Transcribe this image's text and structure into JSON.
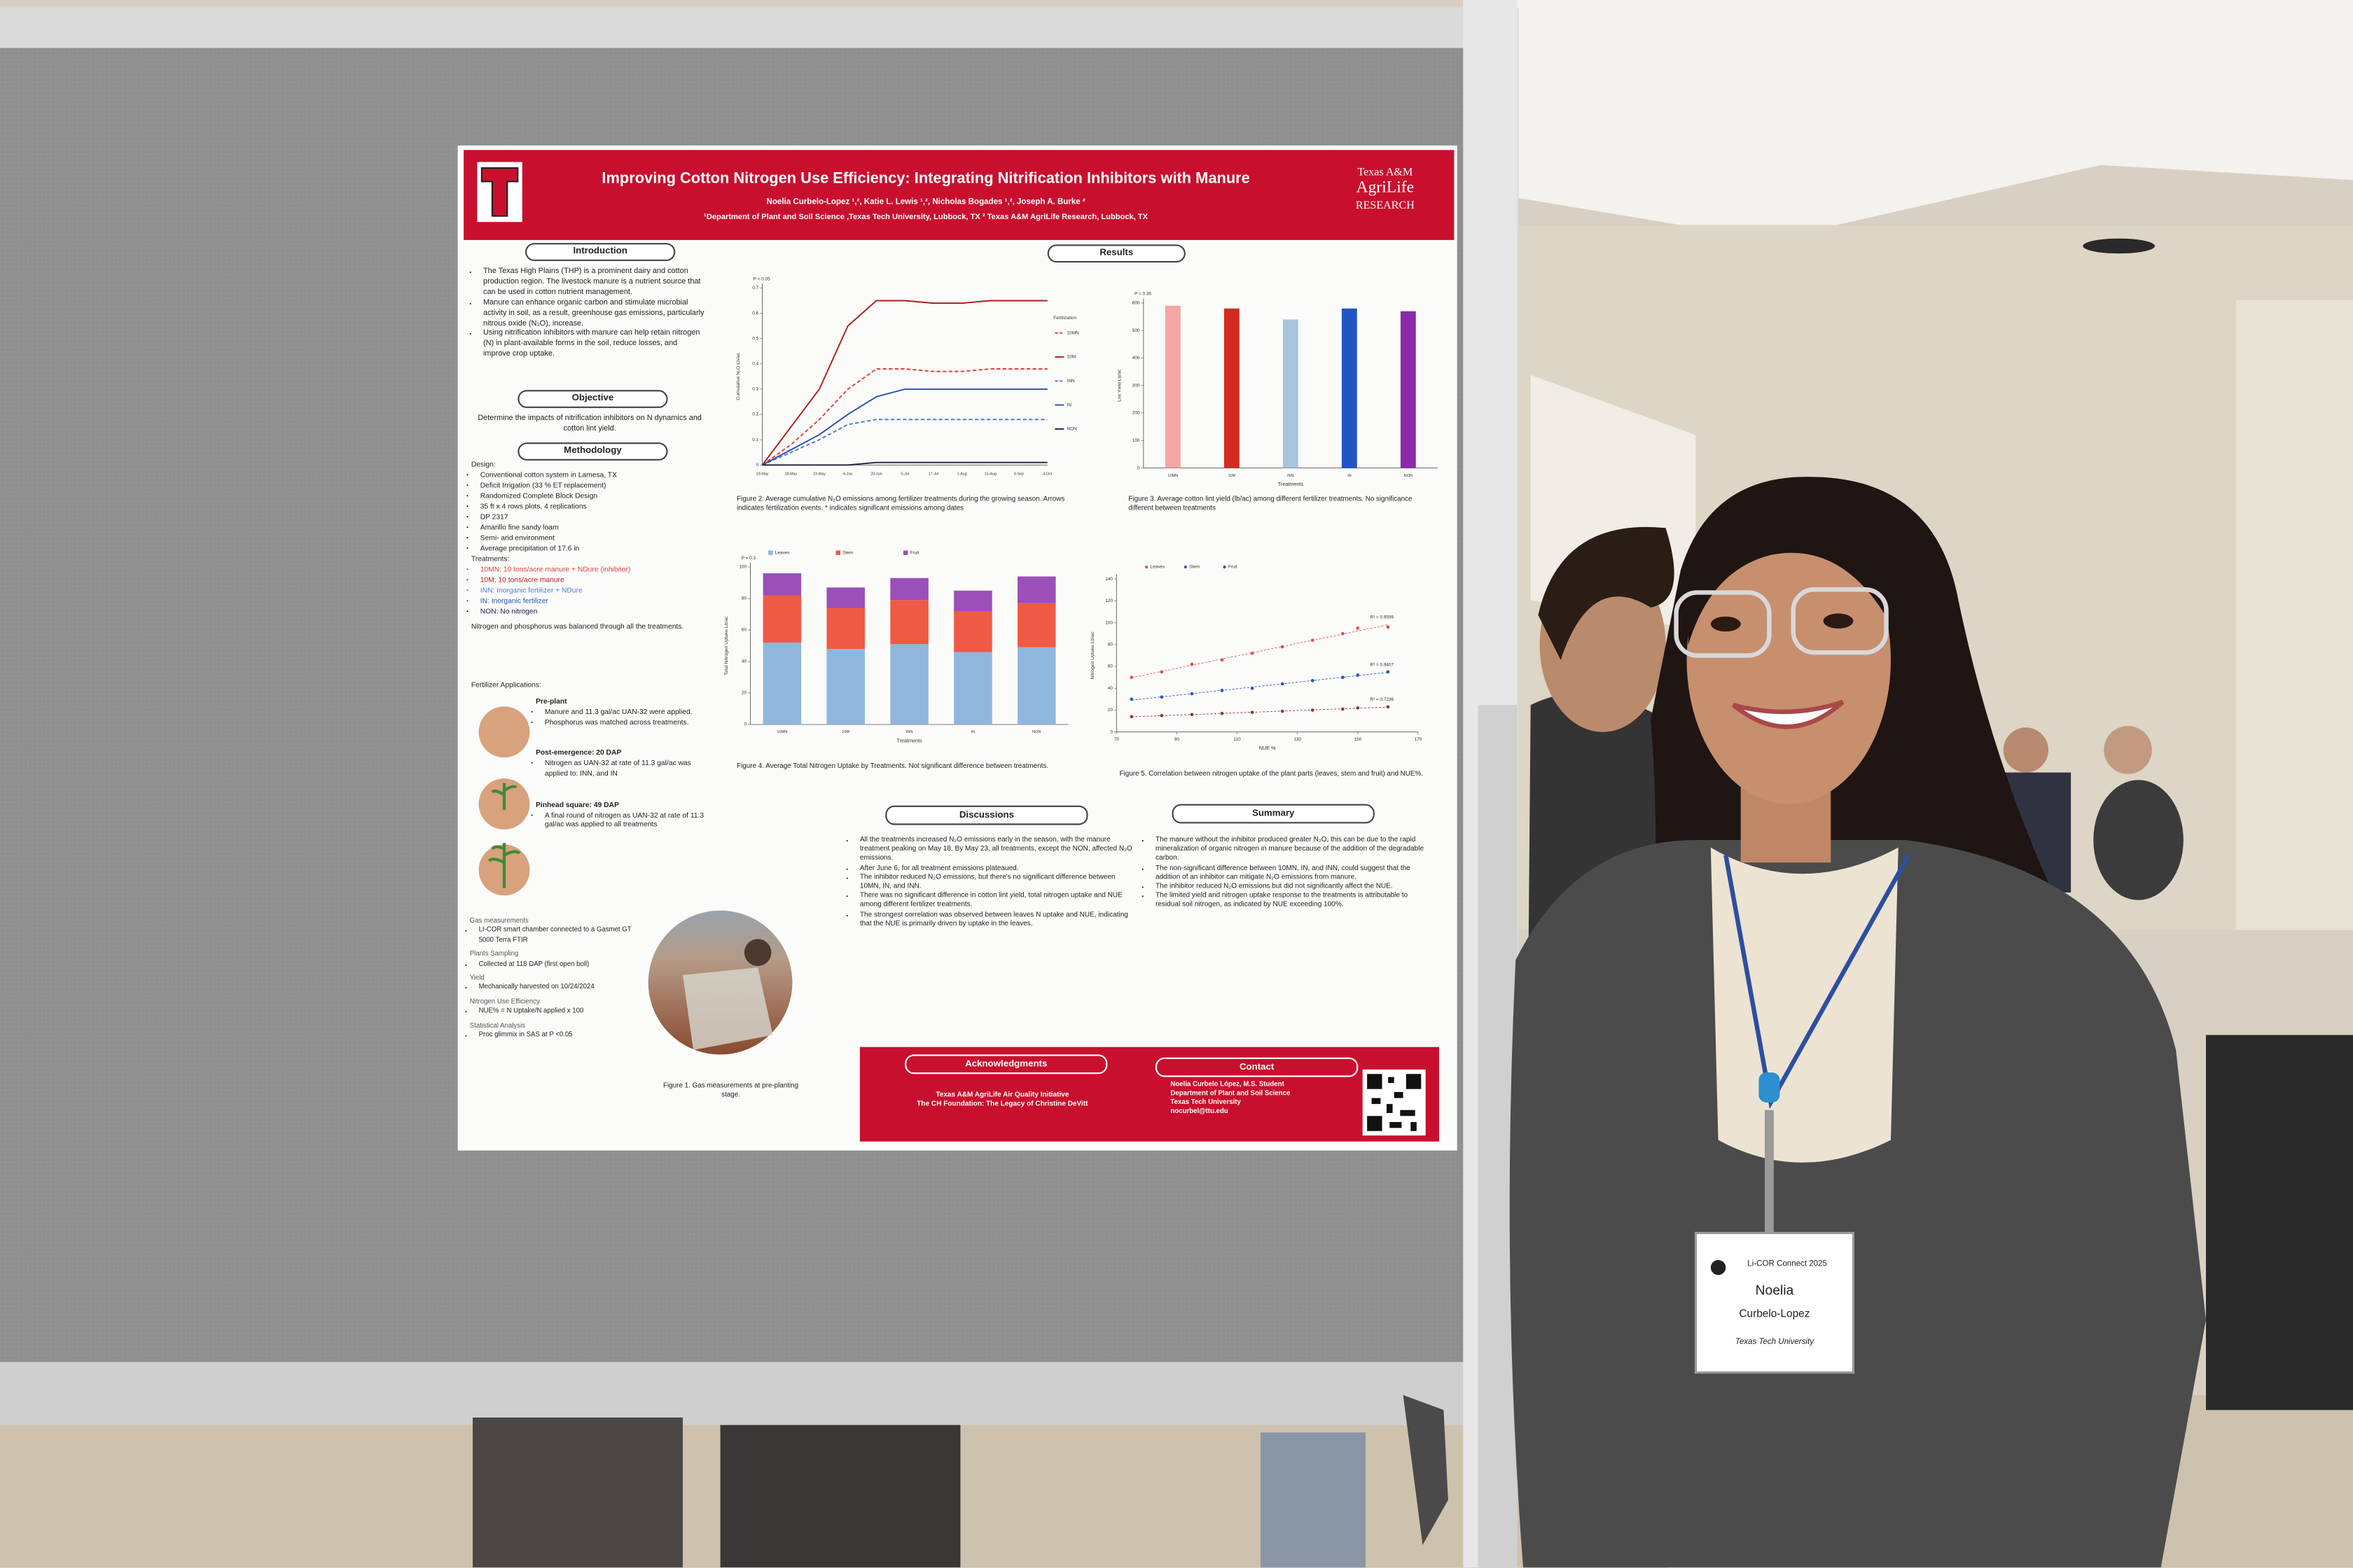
{
  "poster": {
    "header": {
      "title": "Improving Cotton Nitrogen Use Efficiency: Integrating Nitrification Inhibitors with Manure",
      "authors": "Noelia Curbelo-Lopez ¹,², Katie L. Lewis ¹,², Nicholas Bogades ¹,², Joseph A. Burke ²",
      "affiliations": "¹Department of Plant and Soil Science ,Texas Tech University, Lubbock, TX ² Texas A&M AgriLife Research, Lubbock, TX",
      "logo_right": [
        "Texas A&M",
        "AgriLife",
        "RESEARCH"
      ]
    },
    "introduction": {
      "heading": "Introduction",
      "bullets": [
        "The Texas High Plains (THP) is a prominent dairy and cotton production region. The livestock manure is a nutrient source that can be used in cotton nutrient management.",
        "Manure can enhance organic carbon and stimulate microbial activity in soil, as a result, greenhouse gas emissions, particularly nitrous oxide (N₂O), increase.",
        "Using nitrification inhibitors with manure can help retain nitrogen (N) in plant-available forms in the soil, reduce losses, and improve crop uptake."
      ]
    },
    "objective": {
      "heading": "Objective",
      "text": "Determine the impacts of nitrification inhibitors on N dynamics and cotton lint yield."
    },
    "methodology": {
      "heading": "Methodology",
      "design_label": "Design:",
      "design": [
        "Conventional cotton system in Lamesa, TX",
        "Deficit Irrigation (33 % ET replacement)",
        "Randomized Complete Block Design",
        "35 ft x 4 rows plots, 4 replications",
        "DP 2317",
        "Amarillo fine sandy loam",
        "Semi- arid environment",
        "Average precipitation of 17.6 in"
      ],
      "treatments_label": "Treatments:",
      "treatments": [
        "10MN: 10 tons/acre manure + NDure (inhibitor)",
        "10M: 10 tons/acre manure",
        "INN: Inorganic fertilizer + NDure",
        "IN: Inorganic fertilizer",
        "NON: No nitrogen"
      ],
      "note": "Nitrogen and phosphorus was balanced through all the treatments.",
      "fertilizer_label": "Fertilizer Applications:",
      "applications": [
        {
          "title": "Pre-plant",
          "bullets": [
            "Manure and 11.3 gal/ac UAN-32 were applied.",
            "Phosphorus was matched across treatments."
          ]
        },
        {
          "title": "Post-emergence: 20 DAP",
          "bullets": [
            "Nitrogen as UAN-32 at rate of 11.3 gal/ac was applied to: INN, and IN"
          ]
        },
        {
          "title": "Pinhead square: 49 DAP",
          "bullets": [
            "A final round of nitrogen as UAN-32 at rate of 11.3 gal/ac was applied to all treatments"
          ]
        }
      ],
      "measurements": [
        {
          "label": "Gas measurements",
          "bullets": [
            "LI-COR smart chamber connected to a Gasmet GT 5000 Terra FTIR"
          ]
        },
        {
          "label": "Plants Sampling",
          "bullets": [
            "Collected at 118 DAP (first open boll)"
          ]
        },
        {
          "label": "Yield",
          "bullets": [
            "Mechanically harvested on 10/24/2024"
          ]
        },
        {
          "label": "Nitrogen Use Efficiency",
          "bullets": [
            "NUE% = N Uptake/N applied x 100"
          ]
        },
        {
          "label": "Statistical Analysis",
          "bullets": [
            "Proc glimmix in SAS at P <0.05"
          ]
        }
      ]
    },
    "figure1_caption": "Figure 1. Gas measurements at pre-planting stage.",
    "results_heading": "Results",
    "discussions": {
      "heading": "Discussions",
      "bullets": [
        "All the treatments increased N₂O emissions early in the season, with the manure treatment peaking on May 18. By May 23, all treatments, except the NON, affected N₂O emissions.",
        "After June 6, for all treatment emissions plateaued.",
        "The inhibitor reduced N₂O emissions, but there's no significant difference between 10MN, IN, and INN.",
        "There was no significant difference in cotton lint yield, total nitrogen uptake and NUE among different fertilizer treatments.",
        "The strongest correlation was observed between leaves N uptake and NUE, indicating that the NUE is primarily driven by uptake in the leaves."
      ]
    },
    "summary": {
      "heading": "Summary",
      "bullets": [
        "The manure without the inhibitor produced greater N₂O, this can be due to the rapid mineralization of organic nitrogen in manure because of the addition of the degradable carbon.",
        "The non-significant difference between 10MN, IN, and INN, could suggest that the addition of an inhibitor can mitigate N₂O emissions from manure.",
        "The inhibitor reduced N₂O emissions but did not significantly affect the NUE.",
        "The limited yield and nitrogen uptake response to the treatments is attributable to residual soil nitrogen, as indicated by NUE exceeding 100%."
      ]
    },
    "acknowledgments": {
      "heading": "Acknowledgments",
      "lines": [
        "Texas A&M AgriLife Air Quality Initiative",
        "The CH Foundation: The Legacy of Christine DeVitt"
      ]
    },
    "contact": {
      "heading": "Contact",
      "lines": [
        "Noelia Curbelo López, M.S. Student",
        "Department of Plant and Soil Science",
        "Texas Tech University",
        "nocurbel@ttu.edu"
      ]
    }
  },
  "badge": {
    "event": "Li-COR Connect 2025",
    "first_name": "Noelia",
    "last_name": "Curbelo-Lopez",
    "organization": "Texas Tech University"
  },
  "chart_data": [
    {
      "type": "line",
      "annotation": "P < 0.05",
      "y_label": "Cumulative N₂O Lb/ac",
      "legend_title": "Fertilization",
      "legend": "right",
      "categories": [
        "10-May",
        "18-May",
        "23-May",
        "6-Jun",
        "20-Jun",
        "5-Jul",
        "17-Jul",
        "1-Aug",
        "15-Aug",
        "9-Sep",
        "4-Oct"
      ],
      "ylim": [
        0,
        0.7
      ],
      "yticks": [
        0,
        0.1,
        0.2,
        0.3,
        0.4,
        0.5,
        0.6,
        0.7
      ],
      "series": [
        {
          "name": "10MN",
          "color": "#e0403a",
          "dashed": true,
          "values": [
            0,
            0.08,
            0.18,
            0.3,
            0.38,
            0.38,
            0.37,
            0.37,
            0.38,
            0.38,
            0.38
          ]
        },
        {
          "name": "10M",
          "color": "#a8201c",
          "dashed": false,
          "values": [
            0,
            0.15,
            0.3,
            0.55,
            0.65,
            0.65,
            0.64,
            0.64,
            0.65,
            0.65,
            0.65
          ]
        },
        {
          "name": "INN",
          "color": "#4a7fd0",
          "dashed": true,
          "values": [
            0,
            0.05,
            0.1,
            0.16,
            0.18,
            0.18,
            0.18,
            0.18,
            0.18,
            0.18,
            0.18
          ]
        },
        {
          "name": "IN",
          "color": "#2a4fb0",
          "dashed": false,
          "values": [
            0,
            0.06,
            0.12,
            0.2,
            0.27,
            0.3,
            0.3,
            0.3,
            0.3,
            0.3,
            0.3
          ]
        },
        {
          "name": "NON",
          "color": "#1a2040",
          "dashed": false,
          "values": [
            0,
            0,
            0,
            0,
            0.01,
            0.01,
            0.01,
            0.01,
            0.01,
            0.01,
            0.01
          ]
        }
      ],
      "caption": "Figure 2. Average cumulative N₂O emissions among fertilizer treatments during the growing season. Arrows indicates fertilization events. * indicates significant emissions among dates"
    },
    {
      "type": "bar",
      "annotation": "P = 0.36",
      "y_label": "Lint Yield Lb/ac",
      "x_label": "Treatments",
      "categories": [
        "10MN",
        "10M",
        "INN",
        "IN",
        "NON"
      ],
      "values": [
        590,
        580,
        540,
        580,
        570
      ],
      "colors": [
        "#f4a6a6",
        "#d42b20",
        "#a9c4dd",
        "#2255c4",
        "#8a2aa8"
      ],
      "ylim": [
        0,
        600
      ],
      "yticks": [
        0,
        100,
        200,
        300,
        400,
        500,
        600
      ],
      "caption": "Figure 3. Average cotton lint yield (lb/ac) among different fertilizer treatments. No significance different between treatments"
    },
    {
      "type": "bar",
      "stacked": true,
      "annotation": "P = 0.3",
      "y_label": "Total Nitrogen Uptake Lb/ac",
      "x_label": "Treatments",
      "legend": "top",
      "categories": [
        "10MN",
        "10M",
        "INN",
        "IN",
        "NON"
      ],
      "series": [
        {
          "name": "Leaves",
          "color": "#8fb7dc",
          "values": [
            52,
            48,
            51,
            46,
            49
          ]
        },
        {
          "name": "Stem",
          "color": "#ee5a45",
          "values": [
            30,
            26,
            28,
            26,
            28
          ]
        },
        {
          "name": "Fruit",
          "color": "#9b4fb8",
          "values": [
            14,
            13,
            14,
            13,
            17
          ]
        }
      ],
      "ylim": [
        0,
        100
      ],
      "yticks": [
        0,
        20,
        40,
        60,
        80,
        100
      ],
      "caption": "Figure 4. Average Total Nitrogen Uptake by Treatments. Not significant difference between treatments."
    },
    {
      "type": "scatter",
      "y_label": "Nitrogen Uptake Lb/ac",
      "x_label": "NUE %",
      "legend": "top",
      "x": [
        75,
        85,
        95,
        105,
        115,
        125,
        135,
        145,
        150,
        160
      ],
      "xlim": [
        70,
        170
      ],
      "xticks": [
        70,
        90,
        110,
        130,
        150,
        170
      ],
      "ylim": [
        0,
        140
      ],
      "yticks": [
        0,
        20,
        40,
        60,
        80,
        100,
        120,
        140
      ],
      "series": [
        {
          "name": "Leaves",
          "color": "#d9534f",
          "fit_label": "R² = 0.9599",
          "values": [
            50,
            55,
            62,
            66,
            72,
            78,
            84,
            90,
            95,
            96
          ]
        },
        {
          "name": "Stem",
          "color": "#2a56c6",
          "fit_label": "R² = 0.9407",
          "values": [
            30,
            32,
            35,
            38,
            40,
            44,
            47,
            50,
            52,
            55
          ]
        },
        {
          "name": "Fruit",
          "color": "#8b3a3a",
          "fit_label": "R² = 0.7236",
          "values": [
            14,
            15,
            16,
            17,
            18,
            19,
            20,
            21,
            22,
            23
          ]
        }
      ],
      "caption": "Figure 5. Correlation between nitrogen uptake of the plant parts (leaves, stem and fruit) and NUE%."
    }
  ]
}
